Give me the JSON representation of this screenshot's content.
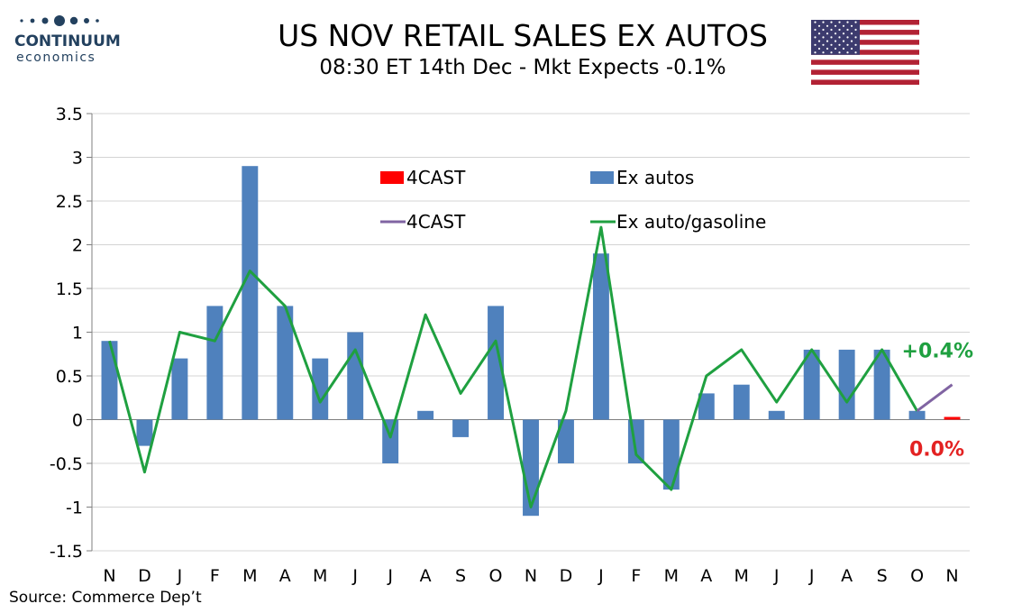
{
  "brand": {
    "name": "CONTINUUM",
    "sub": "economics"
  },
  "title": "US NOV RETAIL SALES EX AUTOS",
  "subtitle": "08:30 ET 14th Dec - Mkt Expects -0.1%",
  "source": "Source: Commerce Dep’t",
  "colors": {
    "bars": "#4f81bd",
    "line": "#1fa040",
    "forecast_bar": "#ff0000",
    "forecast_line": "#8064a2",
    "label_green": "#1fa040",
    "label_red": "#e32222"
  },
  "chart_data": {
    "type": "bar",
    "categories": [
      "N",
      "D",
      "J",
      "F",
      "M",
      "A",
      "M",
      "J",
      "J",
      "A",
      "S",
      "O",
      "N",
      "D",
      "J",
      "F",
      "M",
      "A",
      "M",
      "J",
      "J",
      "A",
      "S",
      "O",
      "N"
    ],
    "ylim": [
      -1.5,
      3.5
    ],
    "yticks": [
      -1.5,
      -1,
      -0.5,
      0,
      0.5,
      1,
      1.5,
      2,
      2.5,
      3,
      3.5
    ],
    "ytick_labels": [
      "-1.5",
      "-1",
      "-0.5",
      "0",
      "0.5",
      "1",
      "1.5",
      "2",
      "2.5",
      "3",
      "3.5"
    ],
    "grid": true,
    "legend_position": "top-center",
    "series": [
      {
        "name": "Ex autos",
        "type": "bar",
        "values": [
          0.9,
          -0.3,
          0.7,
          1.3,
          2.9,
          1.3,
          0.7,
          1.0,
          -0.5,
          0.1,
          -0.2,
          1.3,
          -1.1,
          -0.5,
          1.9,
          -0.5,
          -0.8,
          0.3,
          0.4,
          0.1,
          0.8,
          0.8,
          0.8,
          0.1,
          null
        ]
      },
      {
        "name": "4CAST",
        "type": "bar",
        "values": [
          null,
          null,
          null,
          null,
          null,
          null,
          null,
          null,
          null,
          null,
          null,
          null,
          null,
          null,
          null,
          null,
          null,
          null,
          null,
          null,
          null,
          null,
          null,
          null,
          0.0
        ]
      },
      {
        "name": "Ex auto/gasoline",
        "type": "line",
        "values": [
          0.9,
          -0.6,
          1.0,
          0.9,
          1.7,
          1.3,
          0.2,
          0.8,
          -0.2,
          1.2,
          0.3,
          0.9,
          -1.0,
          0.1,
          2.2,
          -0.4,
          -0.8,
          0.5,
          0.8,
          0.2,
          0.8,
          0.2,
          0.8,
          0.1,
          null
        ]
      },
      {
        "name": "4CAST",
        "type": "line",
        "values": [
          null,
          null,
          null,
          null,
          null,
          null,
          null,
          null,
          null,
          null,
          null,
          null,
          null,
          null,
          null,
          null,
          null,
          null,
          null,
          null,
          null,
          null,
          null,
          0.1,
          0.4
        ]
      }
    ],
    "annotations": [
      {
        "text": "+0.4%",
        "color": "#1fa040",
        "near_value": 0.4
      },
      {
        "text": "0.0%",
        "color": "#e32222",
        "near_value": 0.0
      }
    ]
  }
}
